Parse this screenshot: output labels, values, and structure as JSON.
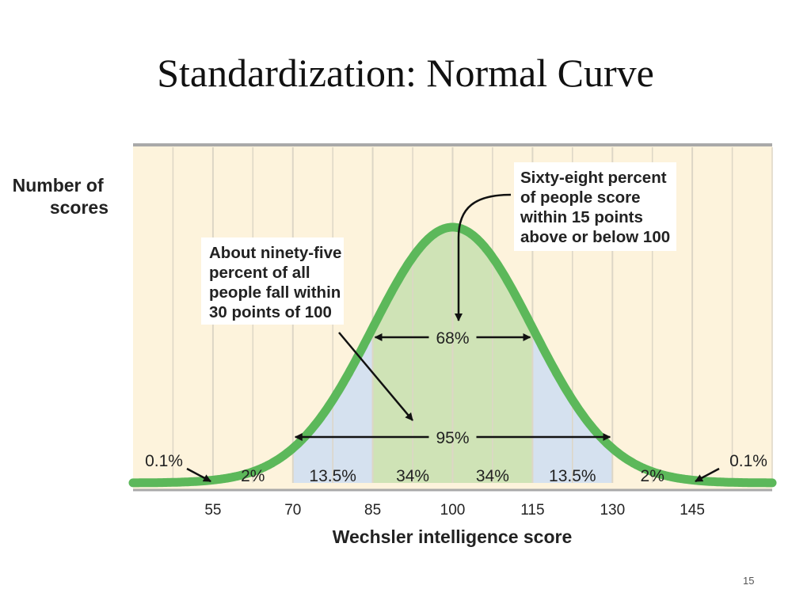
{
  "slide": {
    "title": "Standardization: Normal Curve",
    "page_number": "15"
  },
  "colors": {
    "background": "#fdf3dc",
    "curve": "#5cb85a",
    "band_1sd": "#cfe3b6",
    "band_2sd": "#d5e1ef",
    "gridline": "#ddd6c6",
    "frame": "#a9a9a9"
  },
  "chart_data": {
    "type": "area",
    "distribution": {
      "kind": "normal",
      "mean": 100,
      "sd": 15
    },
    "x_range": [
      40,
      160
    ],
    "xlabel": "Wechsler intelligence score",
    "ylabel_lines": [
      "Number of",
      "scores"
    ],
    "x_ticks": [
      55,
      70,
      85,
      100,
      115,
      130,
      145
    ],
    "regions": [
      {
        "from": 40,
        "to": 55,
        "label": "0.1%"
      },
      {
        "from": 55,
        "to": 70,
        "label": "2%"
      },
      {
        "from": 70,
        "to": 85,
        "label": "13.5%"
      },
      {
        "from": 85,
        "to": 100,
        "label": "34%"
      },
      {
        "from": 100,
        "to": 115,
        "label": "34%"
      },
      {
        "from": 115,
        "to": 130,
        "label": "13.5%"
      },
      {
        "from": 130,
        "to": 145,
        "label": "2%"
      },
      {
        "from": 145,
        "to": 160,
        "label": "0.1%"
      }
    ],
    "range_arrows": [
      {
        "from": 85,
        "to": 115,
        "label": "68%"
      },
      {
        "from": 70,
        "to": 130,
        "label": "95%"
      }
    ],
    "callouts": [
      {
        "text_lines": [
          "Sixty-eight percent",
          "of people score",
          "within 15 points",
          "above or below 100"
        ]
      },
      {
        "text_lines": [
          "About ninety-five",
          "percent of all",
          "people fall within",
          "30 points of 100"
        ]
      }
    ]
  }
}
